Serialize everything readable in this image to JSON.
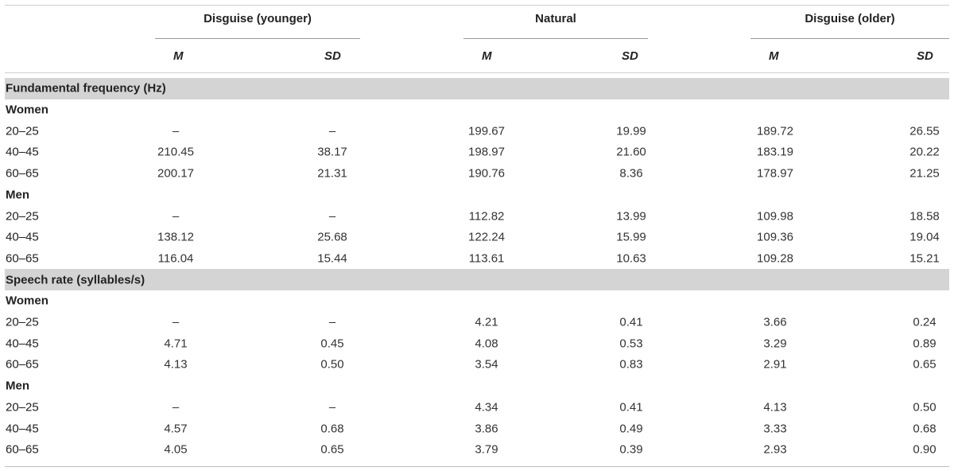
{
  "header": {
    "groups": [
      "Disguise (younger)",
      "Natural",
      "Disguise (older)"
    ],
    "stat_m": "M",
    "stat_sd": "SD"
  },
  "rows": [
    {
      "type": "section",
      "label": "Fundamental frequency (Hz)"
    },
    {
      "type": "group",
      "label": "Women"
    },
    {
      "type": "data",
      "label": "20–25",
      "values": [
        "–",
        "–",
        "199.67",
        "19.99",
        "189.72",
        "26.55"
      ]
    },
    {
      "type": "data",
      "label": "40–45",
      "values": [
        "210.45",
        "38.17",
        "198.97",
        "21.60",
        "183.19",
        "20.22"
      ]
    },
    {
      "type": "data",
      "label": "60–65",
      "values": [
        "200.17",
        "21.31",
        "190.76",
        "8.36",
        "178.97",
        "21.25"
      ]
    },
    {
      "type": "group",
      "label": "Men"
    },
    {
      "type": "data",
      "label": "20–25",
      "values": [
        "–",
        "–",
        "112.82",
        "13.99",
        "109.98",
        "18.58"
      ]
    },
    {
      "type": "data",
      "label": "40–45",
      "values": [
        "138.12",
        "25.68",
        "122.24",
        "15.99",
        "109.36",
        "19.04"
      ]
    },
    {
      "type": "data",
      "label": "60–65",
      "values": [
        "116.04",
        "15.44",
        "113.61",
        "10.63",
        "109.28",
        "15.21"
      ]
    },
    {
      "type": "section",
      "label": "Speech rate (syllables/s)"
    },
    {
      "type": "group",
      "label": "Women"
    },
    {
      "type": "data",
      "label": "20–25",
      "values": [
        "–",
        "–",
        "4.21",
        "0.41",
        "3.66",
        "0.24"
      ]
    },
    {
      "type": "data",
      "label": "40–45",
      "values": [
        "4.71",
        "0.45",
        "4.08",
        "0.53",
        "3.29",
        "0.89"
      ]
    },
    {
      "type": "data",
      "label": "60–65",
      "values": [
        "4.13",
        "0.50",
        "3.54",
        "0.83",
        "2.91",
        "0.65"
      ]
    },
    {
      "type": "group",
      "label": "Men"
    },
    {
      "type": "data",
      "label": "20–25",
      "values": [
        "–",
        "–",
        "4.34",
        "0.41",
        "4.13",
        "0.50"
      ]
    },
    {
      "type": "data",
      "label": "40–45",
      "values": [
        "4.57",
        "0.68",
        "3.86",
        "0.49",
        "3.33",
        "0.68"
      ]
    },
    {
      "type": "data",
      "label": "60–65",
      "values": [
        "4.05",
        "0.65",
        "3.79",
        "0.39",
        "2.93",
        "0.90"
      ]
    }
  ]
}
